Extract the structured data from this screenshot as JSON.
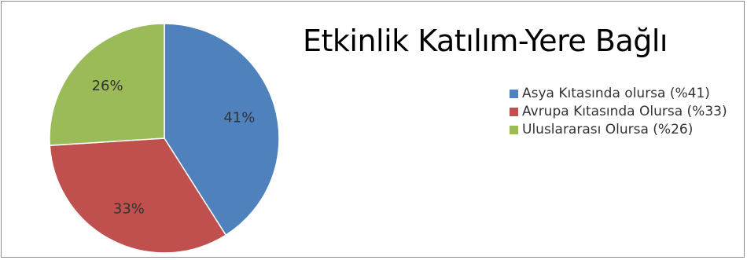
{
  "chart_data": {
    "type": "pie",
    "title": "Etkinlik Katılım-Yere Bağlı",
    "slices": [
      {
        "label": "Asya Kıtasında olursa (%41)",
        "value": 41,
        "data_label": "41%",
        "color": "#4f81bd"
      },
      {
        "label": "Avrupa Kıtasında Olursa (%33)",
        "value": 33,
        "data_label": "33%",
        "color": "#c0504d"
      },
      {
        "label": "Uluslararası Olursa (%26)",
        "value": 26,
        "data_label": "26%",
        "color": "#9bbb59"
      }
    ],
    "legend_position": "right"
  }
}
